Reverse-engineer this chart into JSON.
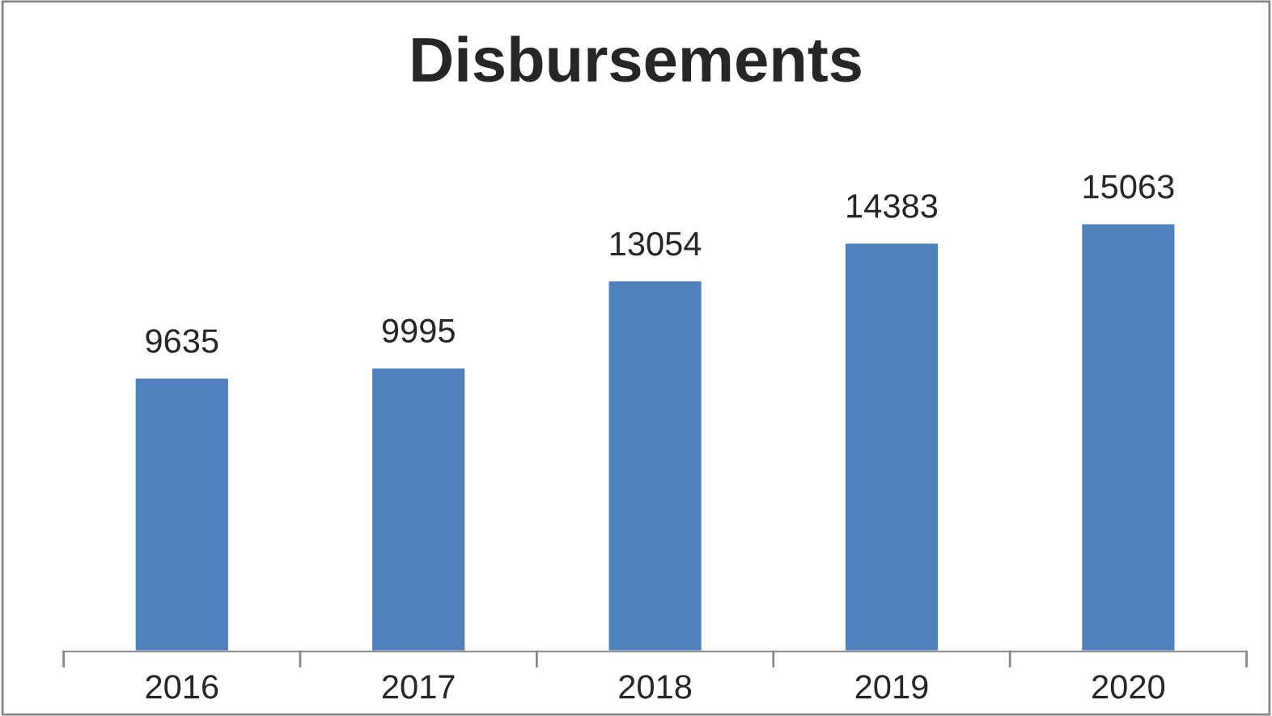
{
  "chart_data": {
    "type": "bar",
    "title": "Disbursements",
    "categories": [
      "2016",
      "2017",
      "2018",
      "2019",
      "2020"
    ],
    "values": [
      9635,
      9995,
      13054,
      14383,
      15063
    ],
    "color": "#4f81bd",
    "data_labels": true,
    "tick_labels": "x",
    "grid": false,
    "legend": false
  }
}
